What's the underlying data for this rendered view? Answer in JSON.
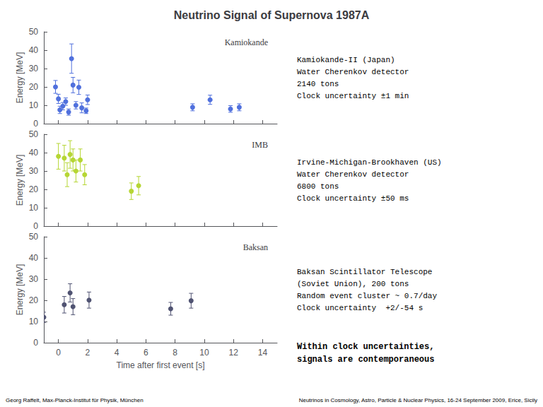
{
  "title": "Neutrino Signal of Supernova 1987A",
  "annotations": [
    "Within clock uncertainties,\nsignals are contemporaneous",
    "Georg Raffelt, Max-Planck-Institut für Physik, München",
    "Neutrinos in Cosmology, Astro, Particle & Nuclear Physics, 16-24 September 2009, Erice, Sicily"
  ],
  "chart_data": [
    {
      "type": "scatter",
      "title": "Kamiokande",
      "annotations": [
        "Kamiokande-II (Japan)\nWater Cherenkov detector\n2140 tons\nClock uncertainty ±1 min"
      ],
      "x": [
        -0.2,
        0.0,
        0.1,
        0.3,
        0.5,
        0.7,
        0.9,
        1.0,
        1.2,
        1.4,
        1.6,
        1.9,
        2.0,
        9.2,
        10.4,
        11.8,
        12.4
      ],
      "values": [
        20.0,
        13.5,
        7.5,
        9.5,
        12.0,
        6.3,
        35.4,
        21.0,
        10.0,
        19.8,
        8.6,
        7.0,
        13.0,
        8.9,
        13.0,
        8.0,
        8.9
      ],
      "yerr": [
        3.5,
        2.5,
        2.0,
        2.0,
        2.0,
        1.7,
        8.0,
        4.2,
        2.0,
        3.9,
        2.7,
        1.5,
        2.6,
        1.9,
        2.5,
        1.8,
        1.9
      ],
      "ylabel": "Energy [MeV]",
      "xlim": [
        -1,
        15
      ],
      "ylim": [
        0,
        50
      ],
      "xticks": [
        0,
        2,
        4,
        6,
        8,
        10,
        12,
        14
      ],
      "yticks": [
        0,
        10,
        20,
        30,
        40,
        50
      ],
      "tick_labels": "y",
      "grid": false
    },
    {
      "type": "scatter",
      "title": "IMB",
      "annotations": [
        "Irvine-Michigan-Brookhaven (US)\nWater Cherenkov detector\n6800 tons\nClock uncertainty ±50 ms"
      ],
      "x": [
        0.0,
        0.4,
        0.6,
        0.8,
        1.0,
        1.2,
        1.5,
        1.8,
        5.0,
        5.5
      ],
      "values": [
        38.0,
        37.0,
        28.0,
        39.0,
        36.0,
        30.0,
        36.0,
        28.0,
        19.0,
        22.0
      ],
      "yerr": [
        7.0,
        7.0,
        6.5,
        7.5,
        6.0,
        6.0,
        6.0,
        5.5,
        4.5,
        5.0
      ],
      "ylabel": "Energy [MeV]",
      "xlim": [
        -1,
        15
      ],
      "ylim": [
        0,
        50
      ],
      "xticks": [
        0,
        2,
        4,
        6,
        8,
        10,
        12,
        14
      ],
      "yticks": [
        0,
        10,
        20,
        30,
        40,
        50
      ],
      "tick_labels": "y",
      "grid": false
    },
    {
      "type": "scatter",
      "title": "Baksan",
      "annotations": [
        "Baksan Scintillator Telescope\n(Soviet Union), 200 tons\nRandom event cluster ~ 0.7/day\nClock uncertainty  +2/-54 s"
      ],
      "x": [
        -1.0,
        0.4,
        0.8,
        1.0,
        2.1,
        7.7,
        9.1
      ],
      "values": [
        12.0,
        17.9,
        23.5,
        17.0,
        20.1,
        16.0,
        19.8
      ],
      "yerr": [
        2.4,
        3.9,
        4.3,
        3.8,
        3.8,
        3.0,
        3.5
      ],
      "xlabel": "Time after first event [s]",
      "ylabel": "Energy [MeV]",
      "xlim": [
        -1,
        15
      ],
      "ylim": [
        0,
        50
      ],
      "xticks": [
        0,
        2,
        4,
        6,
        8,
        10,
        12,
        14
      ],
      "yticks": [
        0,
        10,
        20,
        30,
        40,
        50
      ],
      "grid": false
    }
  ]
}
